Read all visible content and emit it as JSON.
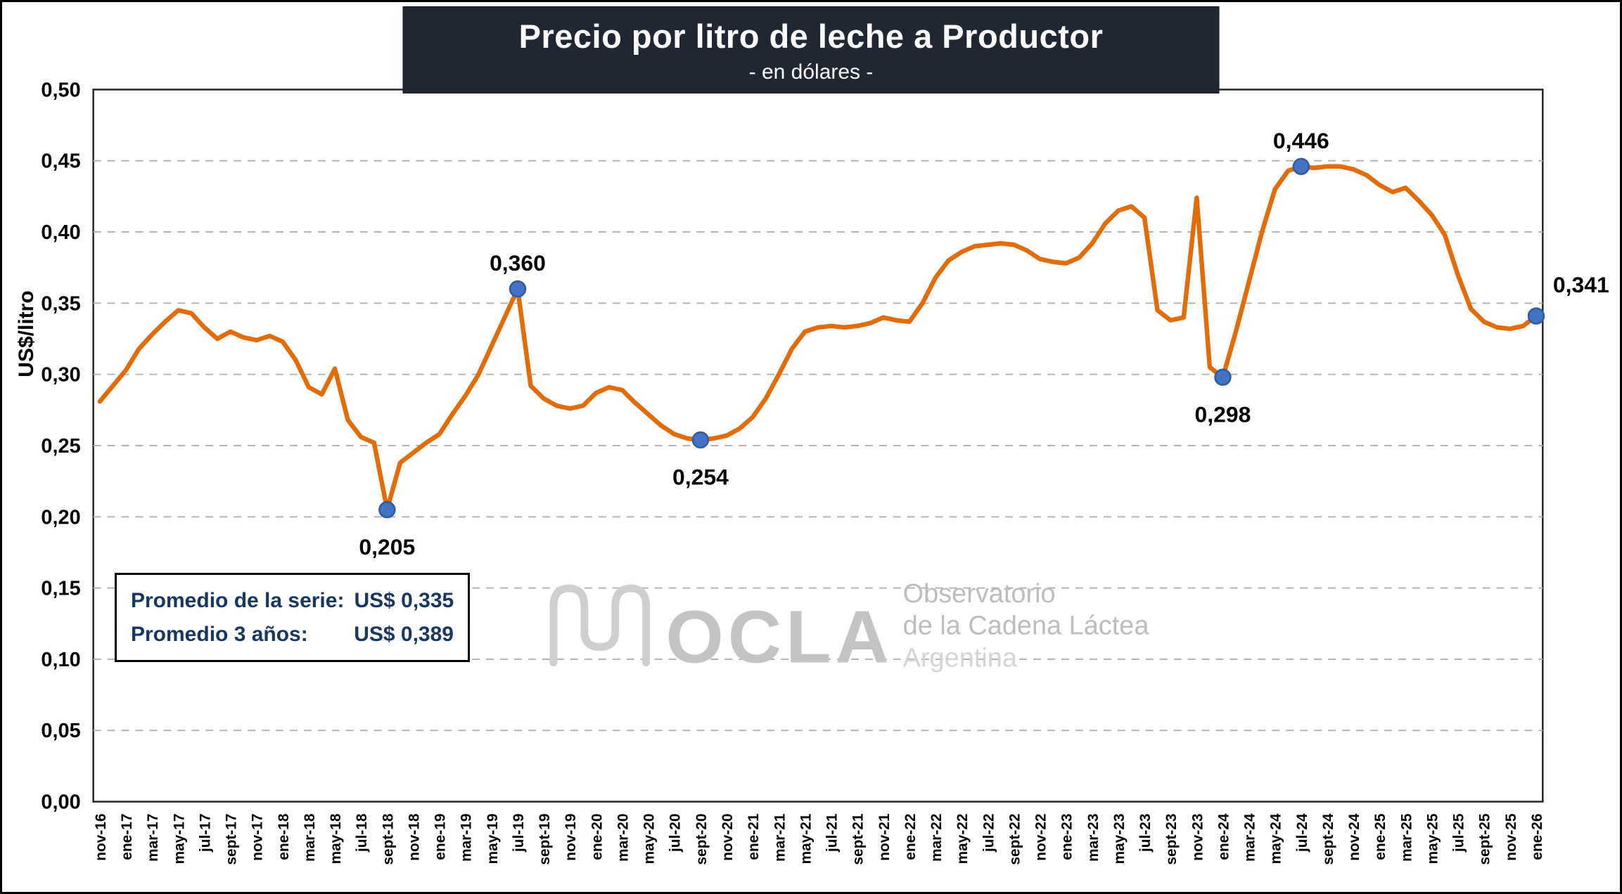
{
  "title": {
    "text": "Precio por litro de leche a Productor",
    "subtitle": "- en dólares -"
  },
  "y_axis_title": "US$/litro",
  "info_box": {
    "rows": [
      {
        "label": "Promedio de la serie:",
        "value": "US$ 0,335"
      },
      {
        "label": "Promedio 3 años:",
        "value": "US$ 0,389"
      }
    ]
  },
  "watermark": {
    "acronym": "OCLA",
    "lines": [
      "Observatorio",
      "de la Cadena Láctea",
      "Argentina"
    ]
  },
  "chart_data": {
    "type": "line",
    "title": "Precio por litro de leche a Productor",
    "subtitle": "- en dólares -",
    "ylabel": "US$/litro",
    "xlabel": "",
    "ylim": [
      0,
      0.5
    ],
    "y_tick_step": 0.05,
    "x_tick_step": 2,
    "grid": "horizontal-dashed",
    "legend": "none",
    "marker_color": "#4472C4",
    "x": [
      "nov-16",
      "dic-16",
      "ene-17",
      "feb-17",
      "mar-17",
      "abr-17",
      "may-17",
      "jun-17",
      "jul-17",
      "ago-17",
      "sept-17",
      "oct-17",
      "nov-17",
      "dic-17",
      "ene-18",
      "feb-18",
      "mar-18",
      "abr-18",
      "may-18",
      "jun-18",
      "jul-18",
      "ago-18",
      "sept-18",
      "oct-18",
      "nov-18",
      "dic-18",
      "ene-19",
      "feb-19",
      "mar-19",
      "abr-19",
      "may-19",
      "jun-19",
      "jul-19",
      "ago-19",
      "sept-19",
      "oct-19",
      "nov-19",
      "dic-19",
      "ene-20",
      "feb-20",
      "mar-20",
      "abr-20",
      "may-20",
      "jun-20",
      "jul-20",
      "ago-20",
      "sept-20",
      "oct-20",
      "nov-20",
      "dic-20",
      "ene-21",
      "feb-21",
      "mar-21",
      "abr-21",
      "may-21",
      "jun-21",
      "jul-21",
      "ago-21",
      "sept-21",
      "oct-21",
      "nov-21",
      "dic-21",
      "ene-22",
      "feb-22",
      "mar-22",
      "abr-22",
      "may-22",
      "jun-22",
      "jul-22",
      "ago-22",
      "sept-22",
      "oct-22",
      "nov-22",
      "dic-22",
      "ene-23",
      "feb-23",
      "mar-23",
      "abr-23",
      "may-23",
      "jun-23",
      "jul-23",
      "ago-23",
      "sept-23",
      "oct-23",
      "nov-23",
      "dic-23",
      "ene-24",
      "feb-24",
      "mar-24",
      "abr-24",
      "may-24",
      "jun-24",
      "jul-24",
      "ago-24",
      "sept-24",
      "oct-24",
      "nov-24",
      "dic-24",
      "ene-25",
      "feb-25",
      "mar-25",
      "abr-25",
      "may-25",
      "jun-25",
      "jul-25",
      "ago-25",
      "sept-25",
      "oct-25",
      "nov-25",
      "dic-25",
      "ene-26"
    ],
    "series": [
      {
        "name": "Precio por litro de leche a Productor (US$/litro)",
        "color": "#E36C09",
        "values": [
          0.281,
          0.292,
          0.303,
          0.318,
          0.328,
          0.337,
          0.345,
          0.343,
          0.333,
          0.325,
          0.33,
          0.326,
          0.324,
          0.327,
          0.323,
          0.31,
          0.291,
          0.286,
          0.304,
          0.268,
          0.256,
          0.252,
          0.205,
          0.238,
          0.245,
          0.252,
          0.258,
          0.272,
          0.285,
          0.3,
          0.32,
          0.34,
          0.36,
          0.292,
          0.283,
          0.278,
          0.276,
          0.278,
          0.287,
          0.291,
          0.289,
          0.28,
          0.272,
          0.264,
          0.258,
          0.255,
          0.254,
          0.255,
          0.257,
          0.262,
          0.27,
          0.283,
          0.3,
          0.318,
          0.33,
          0.333,
          0.334,
          0.333,
          0.334,
          0.336,
          0.34,
          0.338,
          0.337,
          0.35,
          0.368,
          0.38,
          0.386,
          0.39,
          0.391,
          0.392,
          0.391,
          0.387,
          0.381,
          0.379,
          0.378,
          0.382,
          0.392,
          0.406,
          0.415,
          0.418,
          0.41,
          0.345,
          0.338,
          0.34,
          0.424,
          0.305,
          0.298,
          0.33,
          0.365,
          0.4,
          0.43,
          0.443,
          0.446,
          0.445,
          0.446,
          0.446,
          0.444,
          0.44,
          0.433,
          0.428,
          0.431,
          0.422,
          0.412,
          0.398,
          0.37,
          0.346,
          0.337,
          0.333,
          0.332,
          0.334,
          0.341
        ]
      }
    ],
    "annotations": [
      {
        "index": 22,
        "x": "sept-18",
        "value": 0.205,
        "label": "0,205",
        "placement": "below"
      },
      {
        "index": 32,
        "x": "jul-19",
        "value": 0.36,
        "label": "0,360",
        "placement": "above"
      },
      {
        "index": 46,
        "x": "sept-20",
        "value": 0.254,
        "label": "0,254",
        "placement": "below"
      },
      {
        "index": 86,
        "x": "ene-24",
        "value": 0.298,
        "label": "0,298",
        "placement": "below"
      },
      {
        "index": 92,
        "x": "jul-24",
        "value": 0.446,
        "label": "0,446",
        "placement": "above"
      },
      {
        "index": 110,
        "x": "ene-26",
        "value": 0.341,
        "label": "0,341",
        "placement": "right"
      }
    ]
  }
}
